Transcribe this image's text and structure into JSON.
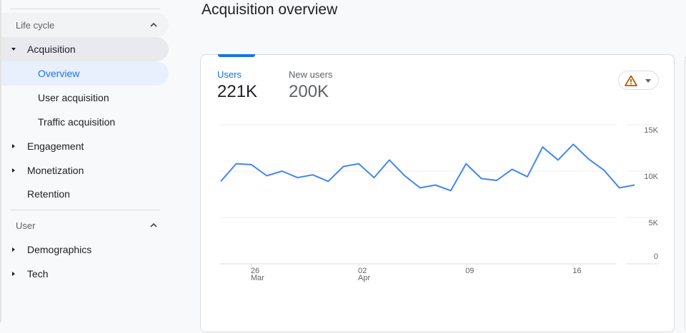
{
  "sidebar": {
    "sections": [
      {
        "label": "Life cycle",
        "expanded": true
      },
      {
        "label": "User",
        "expanded": true
      }
    ],
    "items": {
      "acquisition": "Acquisition",
      "overview": "Overview",
      "user_acquisition": "User acquisition",
      "traffic_acquisition": "Traffic acquisition",
      "engagement": "Engagement",
      "monetization": "Monetization",
      "retention": "Retention",
      "demographics": "Demographics",
      "tech": "Tech"
    }
  },
  "page": {
    "title": "Acquisition overview"
  },
  "card": {
    "metrics": [
      {
        "label": "Users",
        "value": "221K",
        "selected": true
      },
      {
        "label": "New users",
        "value": "200K",
        "selected": false
      }
    ],
    "alert_icon": "warning-icon",
    "colors": {
      "accent": "#1a73e8",
      "line": "#4285f4",
      "warning": "#b06000"
    }
  },
  "chart_data": {
    "type": "line",
    "title": "Users",
    "xlabel": "",
    "ylabel": "",
    "ylim": [
      0,
      15000
    ],
    "y_ticks": [
      "15K",
      "10K",
      "5K",
      "0"
    ],
    "y_tick_values": [
      15000,
      10000,
      5000,
      0
    ],
    "x_ticks": [
      {
        "index": 2,
        "day": "26",
        "month": "Mar"
      },
      {
        "index": 9,
        "day": "02",
        "month": "Apr"
      },
      {
        "index": 16,
        "day": "09",
        "month": ""
      },
      {
        "index": 23,
        "day": "16",
        "month": ""
      }
    ],
    "y_axis_position": "right",
    "grid": true,
    "x": [
      "Mar 24",
      "Mar 25",
      "Mar 26",
      "Mar 27",
      "Mar 28",
      "Mar 29",
      "Mar 30",
      "Mar 31",
      "Apr 01",
      "Apr 02",
      "Apr 03",
      "Apr 04",
      "Apr 05",
      "Apr 06",
      "Apr 07",
      "Apr 08",
      "Apr 09",
      "Apr 10",
      "Apr 11",
      "Apr 12",
      "Apr 13",
      "Apr 14",
      "Apr 15",
      "Apr 16",
      "Apr 17",
      "Apr 18",
      "Apr 19",
      "Apr 20"
    ],
    "series": [
      {
        "name": "Users",
        "color": "#4285f4",
        "values": [
          8900,
          10800,
          10700,
          9500,
          10000,
          9300,
          9600,
          8900,
          10500,
          10800,
          9300,
          11200,
          9500,
          8200,
          8500,
          7900,
          10800,
          9200,
          9000,
          10200,
          9400,
          12600,
          11200,
          12900,
          11300,
          10100,
          8200,
          8500
        ]
      }
    ]
  }
}
